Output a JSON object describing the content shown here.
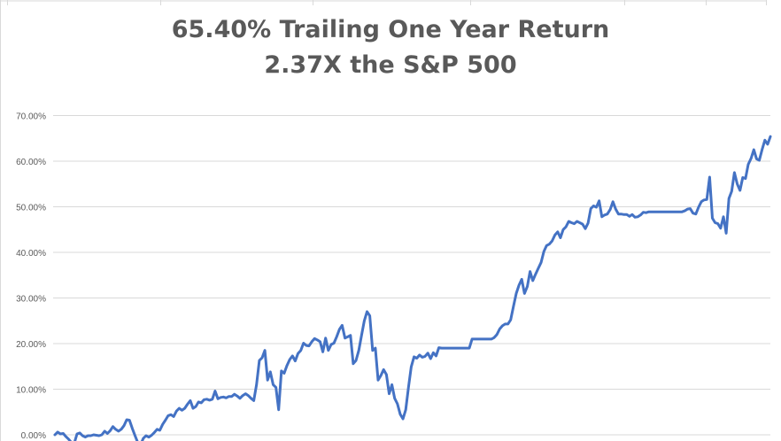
{
  "chart_data": {
    "type": "line",
    "title": [
      "65.40% Trailing One Year Return",
      "2.37X the S&P 500"
    ],
    "xlabel": "",
    "ylabel": "",
    "ylim": [
      0,
      70
    ],
    "y_ticks": [
      "0.00%",
      "10.00%",
      "20.00%",
      "30.00%",
      "40.00%",
      "50.00%",
      "60.00%",
      "70.00%"
    ],
    "grid": true,
    "legend": "none",
    "colors": {
      "line": "#4472C4",
      "grid": "#D9D9D9",
      "axis_text": "#595959",
      "title": "#595959"
    },
    "series": [
      {
        "values": [
          0.0,
          0.6,
          0.2,
          0.3,
          -0.4,
          -1.0,
          -1.7,
          -1.9,
          0.2,
          0.4,
          -0.2,
          -0.5,
          -0.2,
          -0.2,
          0.0,
          -0.1,
          -0.2,
          0.0,
          0.8,
          0.3,
          0.9,
          1.8,
          1.2,
          0.8,
          1.2,
          2.0,
          3.3,
          3.2,
          1.4,
          -0.2,
          -1.7,
          -2.2,
          -0.8,
          -0.2,
          -0.5,
          -0.1,
          0.5,
          1.2,
          1.0,
          2.3,
          3.2,
          4.2,
          4.4,
          4.0,
          5.2,
          5.8,
          5.4,
          5.8,
          6.7,
          7.5,
          5.8,
          6.2,
          7.2,
          7.0,
          7.7,
          7.8,
          7.6,
          7.8,
          9.6,
          7.9,
          8.2,
          8.3,
          8.1,
          8.4,
          8.4,
          8.9,
          8.5,
          8.0,
          8.6,
          9.0,
          8.6,
          8.0,
          7.5,
          11.0,
          16.3,
          16.9,
          18.5,
          12.0,
          13.8,
          11.0,
          10.4,
          5.5,
          14.0,
          13.5,
          15.2,
          16.5,
          17.3,
          16.2,
          17.8,
          18.5,
          20.1,
          19.6,
          19.5,
          20.4,
          21.1,
          20.8,
          20.4,
          18.2,
          21.2,
          18.5,
          19.8,
          20.1,
          21.5,
          23.1,
          24.0,
          21.2,
          21.5,
          21.8,
          15.6,
          16.3,
          18.5,
          21.8,
          25.0,
          27.0,
          26.1,
          18.5,
          19.0,
          12.0,
          13.0,
          14.3,
          13.2,
          9.0,
          11.0,
          8.0,
          6.8,
          4.5,
          3.5,
          5.5,
          10.4,
          14.9,
          17.1,
          16.8,
          17.5,
          17.0,
          17.2,
          17.9,
          16.7,
          18.0,
          17.3,
          19.1,
          19.0,
          19.0,
          19.0,
          19.0,
          19.0,
          19.0,
          19.0,
          19.0,
          19.0,
          19.0,
          19.0,
          21.0,
          21.0,
          21.0,
          21.0,
          21.0,
          21.0,
          21.0,
          21.0,
          21.3,
          22.0,
          23.2,
          23.9,
          24.3,
          24.3,
          25.2,
          28.2,
          31.0,
          32.8,
          34.1,
          31.0,
          32.5,
          35.8,
          33.8,
          35.2,
          36.5,
          37.8,
          40.2,
          41.5,
          41.8,
          42.5,
          43.8,
          44.5,
          43.2,
          45.0,
          45.6,
          46.8,
          46.5,
          46.3,
          46.8,
          46.5,
          46.2,
          45.2,
          46.4,
          49.6,
          50.2,
          49.9,
          51.3,
          47.8,
          48.2,
          48.4,
          49.4,
          51.1,
          49.5,
          48.4,
          48.4,
          48.3,
          48.3,
          47.9,
          48.3,
          47.7,
          47.8,
          48.2,
          48.8,
          48.7,
          48.9,
          48.9,
          48.9,
          48.9,
          48.9,
          48.9,
          48.9,
          48.9,
          48.9,
          48.9,
          48.9,
          48.9,
          48.9,
          49.1,
          49.5,
          49.6,
          48.6,
          48.4,
          49.9,
          51.1,
          51.5,
          51.6,
          56.5,
          47.5,
          46.5,
          46.3,
          45.3,
          47.8,
          44.2,
          51.8,
          53.4,
          57.5,
          55.0,
          53.6,
          56.4,
          56.2,
          59.3,
          60.6,
          62.5,
          60.5,
          60.2,
          62.5,
          64.6,
          63.7,
          65.4
        ]
      }
    ]
  }
}
